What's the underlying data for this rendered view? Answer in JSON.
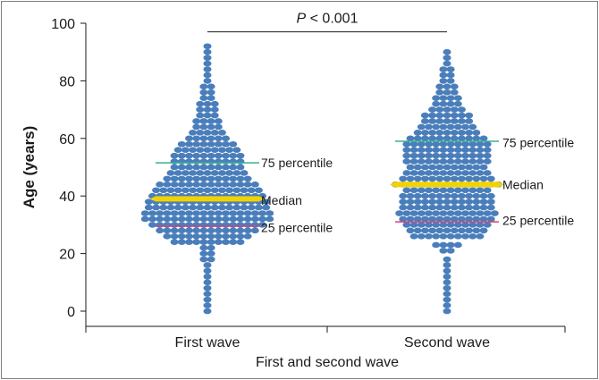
{
  "chart_data": {
    "type": "scatter",
    "subtype": "beeswarm",
    "title": "",
    "xlabel": "First and second wave",
    "ylabel": "Age (years)",
    "ylim": [
      0,
      100
    ],
    "yticks": [
      0,
      20,
      40,
      60,
      80,
      100
    ],
    "categories": [
      "First wave",
      "Second wave"
    ],
    "point_color": "#4a7ebb",
    "significance": {
      "label_italic": "P",
      "label_rest": " < 0.001",
      "between": [
        "First wave",
        "Second wave"
      ],
      "at_value": 97
    },
    "series": [
      {
        "name": "First wave",
        "percentile_75": 51.5,
        "median": 39,
        "percentile_25": 29.5,
        "bins": [
          [
            0,
            1
          ],
          [
            2,
            1
          ],
          [
            4,
            1
          ],
          [
            6,
            1
          ],
          [
            8,
            1
          ],
          [
            10,
            1
          ],
          [
            12,
            1
          ],
          [
            14,
            1
          ],
          [
            16,
            1
          ],
          [
            18,
            2
          ],
          [
            20,
            2
          ],
          [
            22,
            2
          ],
          [
            24,
            10
          ],
          [
            26,
            12
          ],
          [
            28,
            14
          ],
          [
            30,
            16
          ],
          [
            32,
            18
          ],
          [
            34,
            18
          ],
          [
            36,
            17
          ],
          [
            38,
            17
          ],
          [
            40,
            16
          ],
          [
            42,
            15
          ],
          [
            44,
            14
          ],
          [
            46,
            12
          ],
          [
            48,
            11
          ],
          [
            50,
            10
          ],
          [
            52,
            10
          ],
          [
            54,
            10
          ],
          [
            56,
            9
          ],
          [
            58,
            8
          ],
          [
            60,
            6
          ],
          [
            62,
            5
          ],
          [
            64,
            4
          ],
          [
            66,
            4
          ],
          [
            68,
            3
          ],
          [
            70,
            3
          ],
          [
            72,
            3
          ],
          [
            74,
            2
          ],
          [
            76,
            2
          ],
          [
            78,
            2
          ],
          [
            80,
            1
          ],
          [
            82,
            1
          ],
          [
            84,
            1
          ],
          [
            86,
            1
          ],
          [
            88,
            1
          ],
          [
            90,
            1
          ],
          [
            92,
            1
          ]
        ],
        "annotations": [
          "75 percentile",
          "Median",
          "25 percentile"
        ]
      },
      {
        "name": "Second wave",
        "percentile_75": 59,
        "median": 44,
        "percentile_25": 31,
        "bins": [
          [
            0,
            1
          ],
          [
            2,
            1
          ],
          [
            4,
            1
          ],
          [
            6,
            1
          ],
          [
            8,
            1
          ],
          [
            10,
            1
          ],
          [
            12,
            1
          ],
          [
            14,
            1
          ],
          [
            16,
            1
          ],
          [
            18,
            1
          ],
          [
            21,
            2
          ],
          [
            23,
            4
          ],
          [
            26,
            10
          ],
          [
            28,
            11
          ],
          [
            30,
            12
          ],
          [
            32,
            13
          ],
          [
            34,
            14
          ],
          [
            36,
            13
          ],
          [
            38,
            13
          ],
          [
            40,
            13
          ],
          [
            42,
            12
          ],
          [
            44,
            15
          ],
          [
            46,
            13
          ],
          [
            48,
            12
          ],
          [
            50,
            11
          ],
          [
            52,
            12
          ],
          [
            54,
            12
          ],
          [
            56,
            12
          ],
          [
            58,
            12
          ],
          [
            60,
            11
          ],
          [
            62,
            9
          ],
          [
            64,
            8
          ],
          [
            66,
            7
          ],
          [
            68,
            7
          ],
          [
            70,
            5
          ],
          [
            72,
            4
          ],
          [
            74,
            4
          ],
          [
            76,
            3
          ],
          [
            78,
            3
          ],
          [
            80,
            2
          ],
          [
            82,
            2
          ],
          [
            84,
            2
          ],
          [
            86,
            1
          ],
          [
            88,
            1
          ],
          [
            90,
            1
          ]
        ],
        "annotations": [
          "75 percentile",
          "Median",
          "25 percentile"
        ]
      }
    ],
    "line_colors": {
      "percentile_75": "#3bb08f",
      "median": "#f2d200",
      "percentile_25": "#d4407a"
    }
  }
}
